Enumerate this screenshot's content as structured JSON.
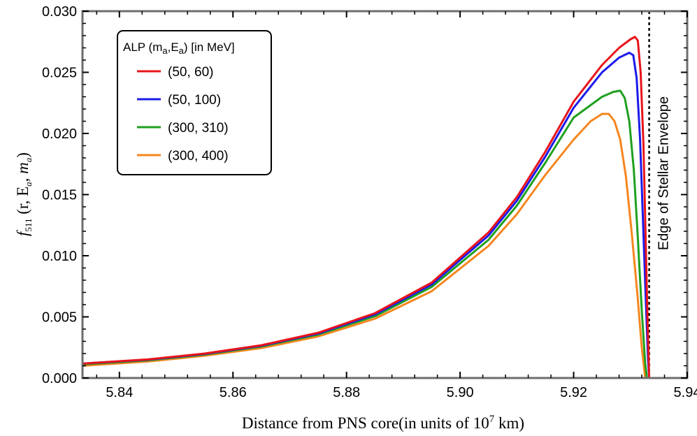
{
  "chart_data": {
    "type": "line",
    "xlabel": {
      "pre": "Distance from PNS core(in units of 10",
      "sup": "7",
      "post": " km)"
    },
    "ylabel": {
      "f": "f",
      "sub": "511",
      "args": " (r, E",
      "sub2": "a",
      "mid": ", m",
      "sub3": "a",
      "close": ")"
    },
    "xlim": [
      5.8335,
      5.94
    ],
    "ylim": [
      0,
      0.03
    ],
    "x_ticks": [
      5.84,
      5.86,
      5.88,
      5.9,
      5.92,
      5.94
    ],
    "x_tick_labels": [
      "5.84",
      "5.86",
      "5.88",
      "5.90",
      "5.92",
      "5.94"
    ],
    "y_ticks": [
      0,
      0.005,
      0.01,
      0.015,
      0.02,
      0.025,
      0.03
    ],
    "y_tick_labels": [
      "0.000",
      "0.005",
      "0.010",
      "0.015",
      "0.020",
      "0.025",
      "0.030"
    ],
    "legend": {
      "title": {
        "pre": "ALP (m",
        "s1": "a",
        "mid": ",E",
        "s2": "a",
        "post": ") [in MeV]"
      },
      "position": "top-left"
    },
    "annotation": {
      "text": "Edge of Stellar Envelope",
      "x": 5.9333
    },
    "series": [
      {
        "name": "(50, 60)",
        "color": "#e8141b",
        "points": [
          [
            5.8335,
            0.00118
          ],
          [
            5.845,
            0.00152
          ],
          [
            5.855,
            0.002
          ],
          [
            5.865,
            0.00268
          ],
          [
            5.875,
            0.0037
          ],
          [
            5.885,
            0.0053
          ],
          [
            5.895,
            0.0078
          ],
          [
            5.905,
            0.0119
          ],
          [
            5.91,
            0.0148
          ],
          [
            5.915,
            0.0185
          ],
          [
            5.92,
            0.0226
          ],
          [
            5.925,
            0.0256
          ],
          [
            5.928,
            0.027
          ],
          [
            5.93,
            0.0277
          ],
          [
            5.9308,
            0.0279
          ],
          [
            5.9313,
            0.0276
          ],
          [
            5.9318,
            0.025
          ],
          [
            5.9323,
            0.019
          ],
          [
            5.9327,
            0.011
          ],
          [
            5.933,
            0.005
          ],
          [
            5.9333,
            0.0
          ]
        ]
      },
      {
        "name": "(50, 100)",
        "color": "#1b1bea",
        "points": [
          [
            5.8335,
            0.00118
          ],
          [
            5.845,
            0.0015
          ],
          [
            5.855,
            0.00197
          ],
          [
            5.865,
            0.00264
          ],
          [
            5.875,
            0.00364
          ],
          [
            5.885,
            0.0052
          ],
          [
            5.895,
            0.00765
          ],
          [
            5.905,
            0.01165
          ],
          [
            5.91,
            0.0145
          ],
          [
            5.915,
            0.0181
          ],
          [
            5.92,
            0.0221
          ],
          [
            5.925,
            0.025
          ],
          [
            5.928,
            0.0262
          ],
          [
            5.9298,
            0.0266
          ],
          [
            5.9305,
            0.0264
          ],
          [
            5.9311,
            0.0245
          ],
          [
            5.9317,
            0.0195
          ],
          [
            5.9322,
            0.013
          ],
          [
            5.9327,
            0.0065
          ],
          [
            5.9331,
            0.0015
          ],
          [
            5.9333,
            0.0
          ]
        ]
      },
      {
        "name": "(300, 310)",
        "color": "#1fa01f",
        "points": [
          [
            5.8335,
            0.00112
          ],
          [
            5.845,
            0.00145
          ],
          [
            5.855,
            0.00192
          ],
          [
            5.865,
            0.00258
          ],
          [
            5.875,
            0.00355
          ],
          [
            5.885,
            0.00505
          ],
          [
            5.895,
            0.00745
          ],
          [
            5.905,
            0.0113
          ],
          [
            5.91,
            0.0141
          ],
          [
            5.915,
            0.0176
          ],
          [
            5.92,
            0.0213
          ],
          [
            5.925,
            0.023
          ],
          [
            5.927,
            0.0234
          ],
          [
            5.9282,
            0.0235
          ],
          [
            5.929,
            0.0229
          ],
          [
            5.9298,
            0.021
          ],
          [
            5.9306,
            0.017
          ],
          [
            5.9313,
            0.0115
          ],
          [
            5.932,
            0.0055
          ],
          [
            5.9326,
            0.0012
          ],
          [
            5.9329,
            0.0
          ]
        ]
      },
      {
        "name": "(300, 400)",
        "color": "#f5861f",
        "points": [
          [
            5.8335,
            0.001
          ],
          [
            5.845,
            0.00135
          ],
          [
            5.855,
            0.00182
          ],
          [
            5.865,
            0.00245
          ],
          [
            5.875,
            0.0034
          ],
          [
            5.885,
            0.00485
          ],
          [
            5.895,
            0.0071
          ],
          [
            5.905,
            0.0108
          ],
          [
            5.91,
            0.0134
          ],
          [
            5.915,
            0.0166
          ],
          [
            5.92,
            0.0195
          ],
          [
            5.923,
            0.021
          ],
          [
            5.925,
            0.0216
          ],
          [
            5.9262,
            0.0216
          ],
          [
            5.9272,
            0.021
          ],
          [
            5.9282,
            0.0195
          ],
          [
            5.9292,
            0.0165
          ],
          [
            5.9302,
            0.012
          ],
          [
            5.9312,
            0.007
          ],
          [
            5.932,
            0.0025
          ],
          [
            5.9326,
            0.0
          ]
        ]
      }
    ]
  }
}
